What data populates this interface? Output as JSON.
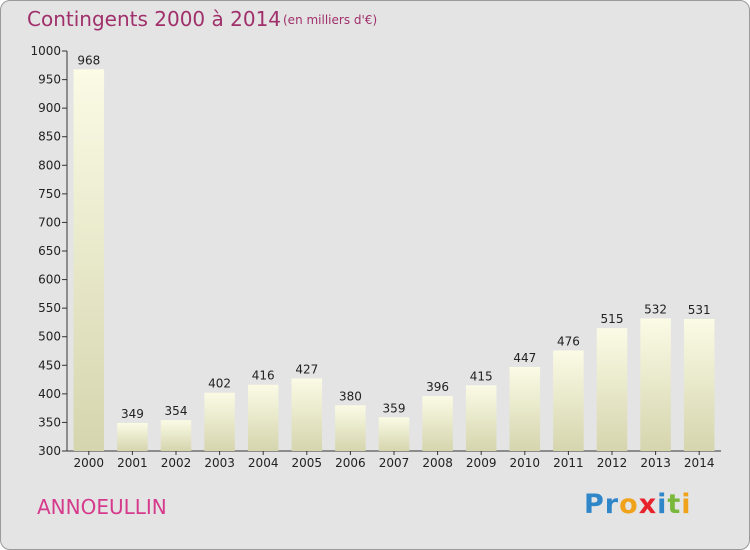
{
  "header": {
    "title": "Contingents 2000 à 2014",
    "unit": "(en milliers d'€)"
  },
  "footer": {
    "commune": "ANNOEULLIN",
    "logo_letters": [
      "P",
      "r",
      "o",
      "x",
      "i",
      "t",
      "i"
    ],
    "logo_colors": [
      "#2f86c8",
      "#2f86c8",
      "#f0a21a",
      "#e8222b",
      "#2f86c8",
      "#7ab83c",
      "#f0a21a"
    ]
  },
  "colors": {
    "title": "#a0306b",
    "commune": "#d63a8c",
    "bar_top": "#fbfbe6",
    "bar_bottom": "#d5d5ae",
    "plot_background": "#e4e4e4"
  },
  "chart_data": {
    "type": "bar",
    "title": "Contingents 2000 à 2014",
    "subtitle": "(en milliers d'€)",
    "xlabel": "",
    "ylabel": "",
    "categories": [
      "2000",
      "2001",
      "2002",
      "2003",
      "2004",
      "2005",
      "2006",
      "2007",
      "2008",
      "2009",
      "2010",
      "2011",
      "2012",
      "2013",
      "2014"
    ],
    "values": [
      968,
      349,
      354,
      402,
      416,
      427,
      380,
      359,
      396,
      415,
      447,
      476,
      515,
      532,
      531
    ],
    "ylim": [
      300,
      1000
    ],
    "yticks": [
      300,
      350,
      400,
      450,
      500,
      550,
      600,
      650,
      700,
      750,
      800,
      850,
      900,
      950,
      1000
    ],
    "grid": false,
    "data_labels": true
  }
}
